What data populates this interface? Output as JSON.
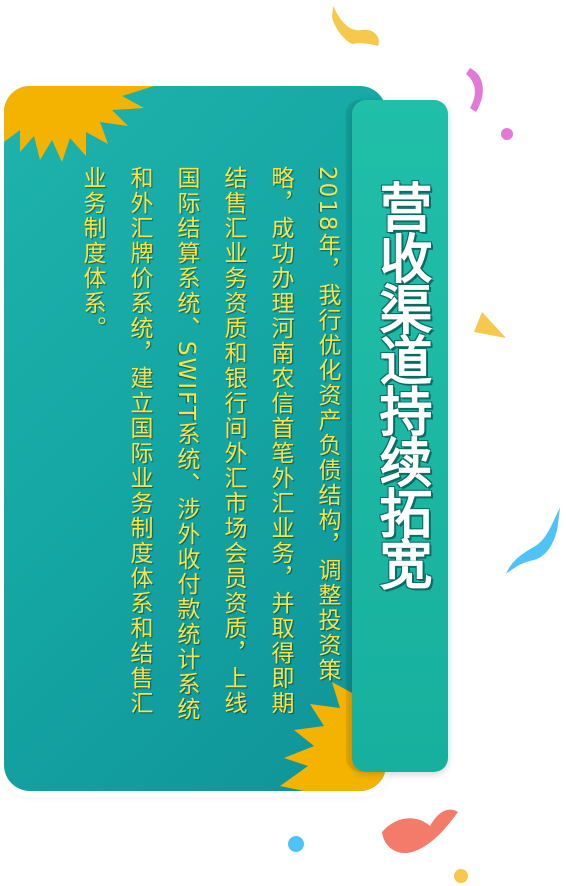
{
  "card": {
    "title": "营收渠道持续拓宽",
    "body": "2018年，我行优化资产负债结构，调整投资策略，成功办理河南农信首笔外汇业务，并取得即期结售汇业务资质和银行间外汇市场会员资质，上线国际结算系统、SWIFT系统、涉外收付款统计系统和外汇牌价系统，建立国际业务制度体系和结售汇业务制度体系。"
  },
  "colors": {
    "card": "#15a7a3",
    "tab": "#1cb8a3",
    "text": "#f5e44c",
    "burst": "#f4b300",
    "confetti_yellow": "#f6c84c",
    "confetti_pink": "#e07ad6",
    "confetti_blue": "#4fc3f7",
    "confetti_coral": "#f47a6a"
  }
}
